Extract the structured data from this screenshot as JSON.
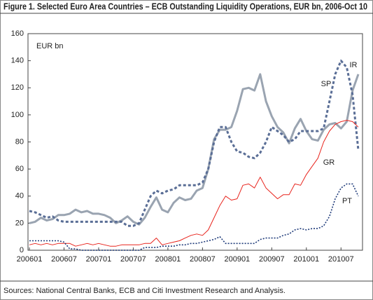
{
  "chart_data": {
    "type": "line",
    "title": "Figure 1. Selected Euro Area Countries – ECB Outstanding Liquidity Operations, EUR bn, 2006-Oct 10",
    "y_label": "EUR bn",
    "source": "Sources: National Central Banks, ECB and Citi Investment Research and Analysis.",
    "categories": [
      "200601",
      null,
      null,
      null,
      null,
      null,
      "200607",
      null,
      null,
      null,
      null,
      null,
      "200701",
      null,
      null,
      null,
      null,
      null,
      "200707",
      null,
      null,
      null,
      null,
      null,
      "200801",
      null,
      null,
      null,
      null,
      null,
      "200807",
      null,
      null,
      null,
      null,
      null,
      "200901",
      null,
      null,
      null,
      null,
      null,
      "200907",
      null,
      null,
      null,
      null,
      null,
      "201001",
      null,
      null,
      null,
      null,
      null,
      "201007",
      null,
      null,
      null
    ],
    "ylim": [
      0,
      160
    ],
    "yticks": [
      0,
      20,
      40,
      60,
      80,
      100,
      120,
      140,
      160
    ],
    "grid": false,
    "series": [
      {
        "name": "IR",
        "color": "#9aa4b1",
        "line_style": "solid",
        "values": [
          20,
          21,
          24,
          22,
          23,
          26,
          26,
          27,
          30,
          28,
          29,
          27,
          27,
          26,
          24,
          20,
          22,
          25,
          21,
          19,
          24,
          32,
          39,
          30,
          28,
          35,
          39,
          37,
          38,
          44,
          46,
          60,
          82,
          89,
          89,
          91,
          103,
          119,
          120,
          118,
          130,
          110,
          99,
          91,
          87,
          79,
          90,
          97,
          88,
          82,
          81,
          89,
          93,
          94,
          90,
          95,
          118,
          130
        ]
      },
      {
        "name": "SP",
        "color": "#5a6e96",
        "line_style": "dotted",
        "values": [
          29,
          28,
          26,
          24,
          25,
          22,
          21,
          21,
          21,
          21,
          21,
          21,
          21,
          21,
          21,
          21,
          21,
          18,
          18,
          20,
          30,
          40,
          44,
          42,
          44,
          45,
          48,
          48,
          48,
          48,
          50,
          60,
          80,
          91,
          91,
          80,
          73,
          72,
          69,
          68,
          72,
          80,
          91,
          88,
          85,
          80,
          82,
          88,
          88,
          88,
          88,
          90,
          110,
          130,
          140,
          135,
          115,
          74
        ]
      },
      {
        "name": "GR",
        "color": "#e8231c",
        "line_style": "solid",
        "values": [
          4,
          5,
          4,
          5,
          4,
          5,
          5,
          5,
          3,
          4,
          5,
          4,
          5,
          4,
          3,
          3,
          4,
          4,
          4,
          4,
          5,
          5,
          9,
          4,
          5,
          6,
          7,
          9,
          11,
          12,
          11,
          15,
          24,
          33,
          40,
          37,
          38,
          48,
          49,
          46,
          54,
          46,
          42,
          38,
          41,
          41,
          49,
          48,
          56,
          62,
          68,
          80,
          88,
          93,
          95,
          96,
          95,
          91
        ]
      },
      {
        "name": "PT",
        "color": "#1f3b7a",
        "line_style": "dotted",
        "values": [
          7,
          7,
          7,
          7,
          7,
          7,
          6,
          1,
          1,
          0,
          0,
          0,
          0,
          0,
          0,
          0,
          0,
          0,
          0,
          0,
          2,
          2,
          2,
          3,
          3,
          3,
          4,
          4,
          5,
          5,
          6,
          7,
          8,
          10,
          5,
          5,
          5,
          5,
          5,
          5,
          8,
          9,
          9,
          9,
          11,
          12,
          15,
          16,
          15,
          16,
          16,
          18,
          25,
          38,
          46,
          49,
          49,
          40
        ]
      }
    ]
  }
}
